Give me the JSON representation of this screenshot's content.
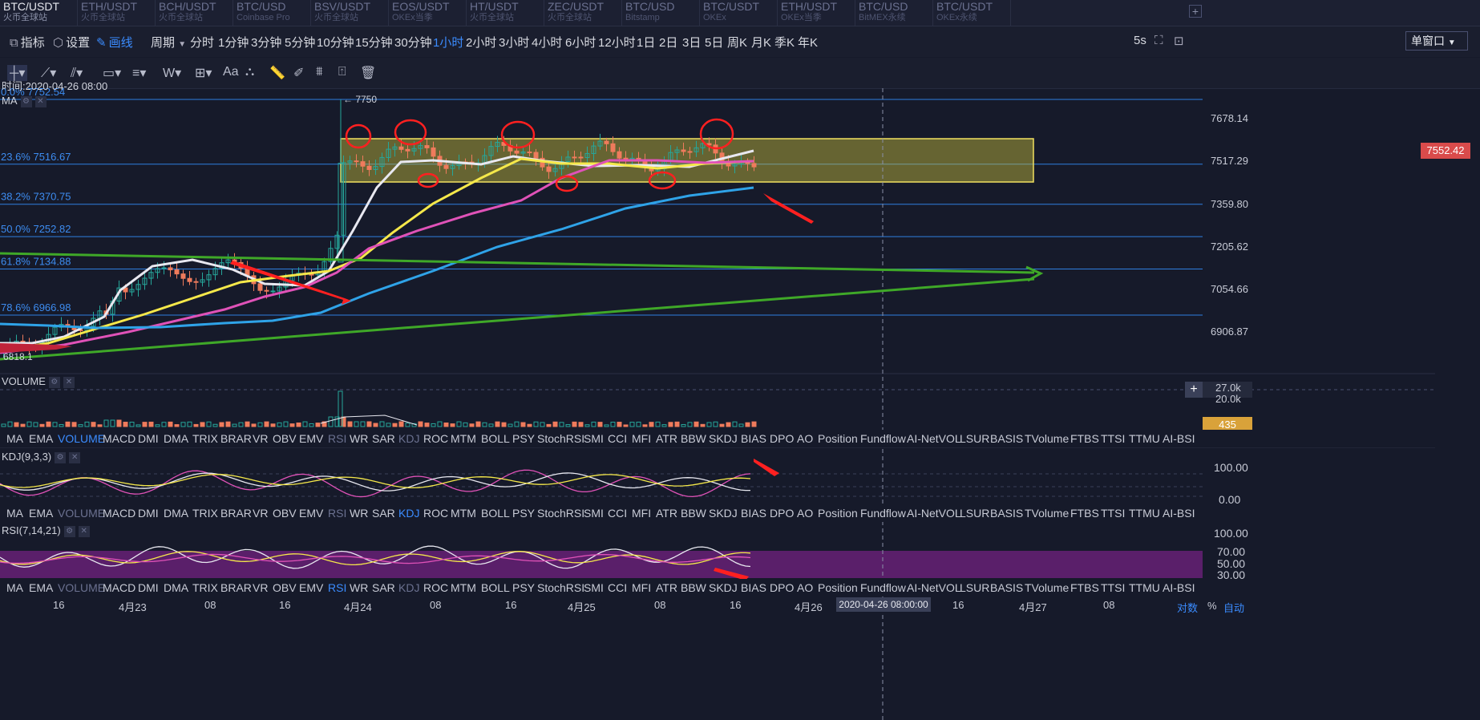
{
  "tabs": [
    {
      "symbol": "BTC/USDT",
      "exchange": "火币全球站",
      "active": true
    },
    {
      "symbol": "ETH/USDT",
      "exchange": "火币全球站"
    },
    {
      "symbol": "BCH/USDT",
      "exchange": "火币全球站"
    },
    {
      "symbol": "BTC/USD",
      "exchange": "Coinbase Pro"
    },
    {
      "symbol": "BSV/USDT",
      "exchange": "火币全球站"
    },
    {
      "symbol": "EOS/USDT",
      "exchange": "OKEx当季"
    },
    {
      "symbol": "HT/USDT",
      "exchange": "火币全球站"
    },
    {
      "symbol": "ZEC/USDT",
      "exchange": "火币全球站"
    },
    {
      "symbol": "BTC/USD",
      "exchange": "Bitstamp"
    },
    {
      "symbol": "BTC/USDT",
      "exchange": "OKEx"
    },
    {
      "symbol": "ETH/USDT",
      "exchange": "OKEx当季"
    },
    {
      "symbol": "BTC/USD",
      "exchange": "BitMEX永续"
    },
    {
      "symbol": "BTC/USDT",
      "exchange": "OKEx永续"
    }
  ],
  "toolbar": {
    "indicator": "指标",
    "settings": "设置",
    "draw": "画线",
    "period": "周期",
    "periods": [
      "分时",
      "1分钟",
      "3分钟",
      "5分钟",
      "10分钟",
      "15分钟",
      "30分钟",
      "1小时",
      "2小时",
      "3小时",
      "4小时",
      "6小时",
      "12小时",
      "1日",
      "2日",
      "3日",
      "5日",
      "周K",
      "月K",
      "季K",
      "年K"
    ],
    "active_period": "1小时",
    "refresh": "5s",
    "window_mode": "单窗口"
  },
  "drawbar": {
    "text_tool": "Aa",
    "w_tool": "W"
  },
  "main_chart": {
    "time_label": "时间:2020-04-26 08:00",
    "ma_label": "MA",
    "peak_label": "← 7750",
    "low_label": "6818.1",
    "fib_levels": [
      {
        "label": "0.0% 7752.54",
        "price": 7752.54
      },
      {
        "label": "23.6% 7516.67",
        "price": 7516.67
      },
      {
        "label": "38.2% 7370.75",
        "price": 7370.75
      },
      {
        "label": "50.0% 7252.82",
        "price": 7252.82
      },
      {
        "label": "61.8% 7134.88",
        "price": 7134.88
      },
      {
        "label": "78.6% 6966.98",
        "price": 6966.98
      }
    ],
    "price_axis": [
      "7678.14",
      "7517.29",
      "7359.80",
      "7205.62",
      "7054.66",
      "6906.87"
    ],
    "last_price": "7552.42",
    "last_price_color": "#e04b4b"
  },
  "volume_panel": {
    "title": "VOLUME",
    "axis": [
      "27.0k",
      "20.0k"
    ],
    "last_volume": "435",
    "plus": "+"
  },
  "indicator_list": [
    "MA",
    "EMA",
    "VOLUME",
    "MACD",
    "DMI",
    "DMA",
    "TRIX",
    "BRAR",
    "VR",
    "OBV",
    "EMV",
    "RSI",
    "WR",
    "SAR",
    "KDJ",
    "ROC",
    "MTM",
    "BOLL",
    "PSY",
    "StochRSI",
    "SMI",
    "CCI",
    "MFI",
    "ATR",
    "BBW",
    "SKDJ",
    "BIAS",
    "DPO",
    "AO",
    "Position",
    "Fundflow",
    "AI-NetVOL",
    "LSUR",
    "BASIS",
    "TVolume",
    "FTBS",
    "TTSI",
    "TTMU",
    "AI-BSI"
  ],
  "kdj_panel": {
    "title": "KDJ(9,3,3)",
    "axis": [
      "100.00",
      "0.00"
    ]
  },
  "rsi_panel": {
    "title": "RSI(7,14,21)",
    "axis": [
      "100.00",
      "70.00",
      "50.00",
      "30.00"
    ]
  },
  "time_axis": [
    "16",
    "4月23",
    "08",
    "16",
    "4月24",
    "08",
    "16",
    "4月25",
    "08",
    "16",
    "4月26",
    "16",
    "4月27",
    "08"
  ],
  "crosshair_time": "2020-04-26 08:00:00",
  "bottom_right": {
    "a": "对数",
    "b": "%",
    "c": "自动"
  },
  "colors": {
    "ma_white": "#e8e8f0",
    "ma_yellow": "#f5e84a",
    "ma_pink": "#e052b8",
    "ma_blue": "#2fa3e8",
    "green_line": "#3fa828",
    "fib": "#2f7fe0",
    "box": "#f0e060",
    "up": "#26a69a",
    "down": "#ef7b5c",
    "annotation": "#ff2020"
  }
}
